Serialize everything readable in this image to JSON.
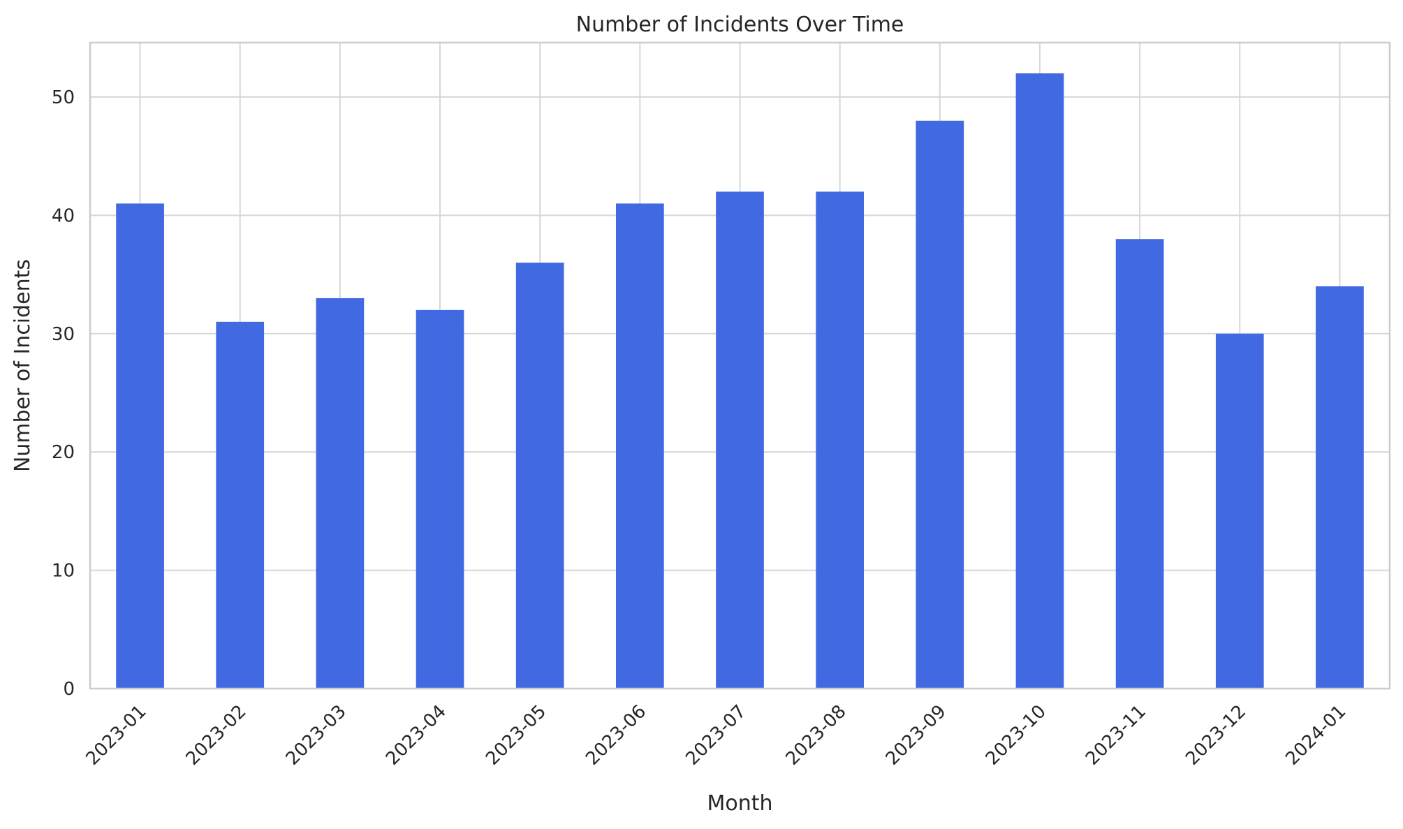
{
  "chart_data": {
    "type": "bar",
    "title": "Number of Incidents Over Time",
    "xlabel": "Month",
    "ylabel": "Number of Incidents",
    "categories": [
      "2023-01",
      "2023-02",
      "2023-03",
      "2023-04",
      "2023-05",
      "2023-06",
      "2023-07",
      "2023-08",
      "2023-09",
      "2023-10",
      "2023-11",
      "2023-12",
      "2024-01"
    ],
    "values": [
      41,
      31,
      33,
      32,
      36,
      41,
      42,
      42,
      48,
      52,
      38,
      30,
      34
    ],
    "ylim": [
      0,
      54.6
    ],
    "yticks": [
      0,
      10,
      20,
      30,
      40,
      50
    ],
    "grid": true,
    "colors": {
      "bar": "#4169e1",
      "grid": "#d7d7d7",
      "frame": "#cccccc",
      "text": "#262626"
    }
  }
}
